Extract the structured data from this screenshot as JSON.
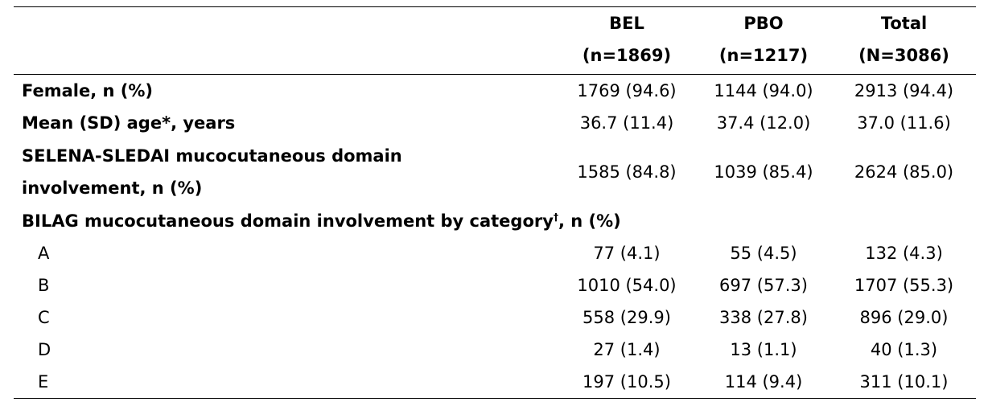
{
  "table": {
    "headers": {
      "bel": {
        "name": "BEL",
        "n": "(n=1869)"
      },
      "pbo": {
        "name": "PBO",
        "n": "(n=1217)"
      },
      "total": {
        "name": "Total",
        "n": "(N=3086)"
      }
    },
    "rows": {
      "female": {
        "label": "Female, n (%)",
        "bel": "1769 (94.6)",
        "pbo": "1144 (94.0)",
        "total": "2913 (94.4)"
      },
      "age": {
        "label": "Mean (SD) age*, years",
        "bel": "36.7 (11.4)",
        "pbo": "37.4 (12.0)",
        "total": "37.0 (11.6)"
      },
      "selena": {
        "label_line1": "SELENA-SLEDAI mucocutaneous domain",
        "label_line2": "involvement, n (%)",
        "bel": "1585 (84.8)",
        "pbo": "1039 (85.4)",
        "total": "2624 (85.0)"
      },
      "bilag": {
        "label_main": "BILAG mucocutaneous domain involvement by category",
        "label_sup": "†",
        "label_tail": ", n (%)"
      },
      "a": {
        "label": "A",
        "bel": "77 (4.1)",
        "pbo": "55 (4.5)",
        "total": "132 (4.3)"
      },
      "b": {
        "label": "B",
        "bel": "1010 (54.0)",
        "pbo": "697 (57.3)",
        "total": "1707 (55.3)"
      },
      "c": {
        "label": "C",
        "bel": "558 (29.9)",
        "pbo": "338 (27.8)",
        "total": "896 (29.0)"
      },
      "d": {
        "label": "D",
        "bel": "27 (1.4)",
        "pbo": "13 (1.1)",
        "total": "40 (1.3)"
      },
      "e": {
        "label": "E",
        "bel": "197 (10.5)",
        "pbo": "114 (9.4)",
        "total": "311 (10.1)"
      }
    }
  }
}
